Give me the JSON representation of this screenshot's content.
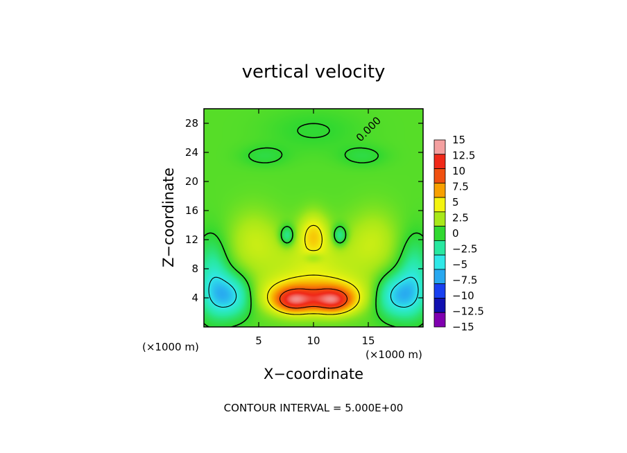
{
  "chart_data": {
    "type": "heatmap",
    "title": "vertical velocity",
    "xlabel": "X−coordinate",
    "ylabel": "Z−coordinate",
    "x_unit_label": "(×1000 m)",
    "z_unit_label": "(×1000 m)",
    "xlim": [
      0,
      20
    ],
    "ylim": [
      0,
      30
    ],
    "x_ticks": [
      {
        "value": 5,
        "label": "5"
      },
      {
        "value": 10,
        "label": "10"
      },
      {
        "value": 15,
        "label": "15"
      }
    ],
    "y_ticks": [
      {
        "value": 4,
        "label": "4"
      },
      {
        "value": 8,
        "label": "8"
      },
      {
        "value": 12,
        "label": "12"
      },
      {
        "value": 16,
        "label": "16"
      },
      {
        "value": 20,
        "label": "20"
      },
      {
        "value": 24,
        "label": "24"
      },
      {
        "value": 28,
        "label": "28"
      }
    ],
    "colorbar": {
      "levels": [
        15,
        12.5,
        10,
        7.5,
        5,
        2.5,
        0,
        -2.5,
        -5,
        -7.5,
        -10,
        -12.5,
        -15
      ],
      "labels": [
        "15",
        "12.5",
        "10",
        "7.5",
        "5",
        "2.5",
        "0",
        "−2.5",
        "−5",
        "−7.5",
        "−10",
        "−12.5",
        "−15"
      ],
      "colors": [
        "#f4a0a0",
        "#f02818",
        "#f05010",
        "#f8a000",
        "#f4f410",
        "#a8e818",
        "#30d830",
        "#28e8a0",
        "#30e8e8",
        "#28a8f0",
        "#1840f0",
        "#1010b0",
        "#8000b0"
      ]
    },
    "contour_interval_text": "CONTOUR INTERVAL = 5.000E+00",
    "contour_label": "0.000",
    "field": {
      "background": 0.8,
      "features": [
        {
          "kind": "updraft-core",
          "x": 8.2,
          "z": 3.6,
          "amplitude": 8.6,
          "sx": 1.3,
          "sz": 1.2
        },
        {
          "kind": "updraft-core",
          "x": 11.8,
          "z": 3.6,
          "amplitude": 8.6,
          "sx": 1.3,
          "sz": 1.2
        },
        {
          "kind": "updraft-band",
          "x": 10.0,
          "z": 4.5,
          "amplitude": 5.5,
          "sx": 3.6,
          "sz": 1.8
        },
        {
          "kind": "updraft-center",
          "x": 10.0,
          "z": 12.8,
          "amplitude": 4.2,
          "sx": 0.9,
          "sz": 2.0
        },
        {
          "kind": "weak-updraft",
          "x": 10.0,
          "z": 9.0,
          "amplitude": 2.6,
          "sx": 3.5,
          "sz": 3.0
        },
        {
          "kind": "weak-updraft",
          "x": 4.5,
          "z": 12.0,
          "amplitude": 2.2,
          "sx": 1.6,
          "sz": 3.0
        },
        {
          "kind": "weak-updraft",
          "x": 15.5,
          "z": 12.0,
          "amplitude": 2.2,
          "sx": 1.6,
          "sz": 3.0
        },
        {
          "kind": "downdraft",
          "x": 2.3,
          "z": 4.3,
          "amplitude": -7.2,
          "sx": 1.4,
          "sz": 2.0
        },
        {
          "kind": "downdraft",
          "x": 17.7,
          "z": 4.3,
          "amplitude": -7.2,
          "sx": 1.4,
          "sz": 2.0
        },
        {
          "kind": "downdraft",
          "x": 0.8,
          "z": 7.0,
          "amplitude": -4.0,
          "sx": 1.0,
          "sz": 3.5
        },
        {
          "kind": "downdraft",
          "x": 19.2,
          "z": 7.0,
          "amplitude": -4.0,
          "sx": 1.0,
          "sz": 3.5
        },
        {
          "kind": "downdraft",
          "x": 7.6,
          "z": 12.5,
          "amplitude": -4.2,
          "sx": 0.5,
          "sz": 1.0
        },
        {
          "kind": "downdraft",
          "x": 12.4,
          "z": 12.5,
          "amplitude": -4.2,
          "sx": 0.5,
          "sz": 1.0
        },
        {
          "kind": "downdraft",
          "x": 10.0,
          "z": 9.5,
          "amplitude": -2.0,
          "sx": 0.6,
          "sz": 0.5
        },
        {
          "kind": "weak-downdraft",
          "x": 5.5,
          "z": 23.5,
          "amplitude": -1.2,
          "sx": 1.5,
          "sz": 1.0
        },
        {
          "kind": "weak-downdraft",
          "x": 14.5,
          "z": 23.5,
          "amplitude": -1.2,
          "sx": 1.5,
          "sz": 1.0
        },
        {
          "kind": "weak-downdraft",
          "x": 10.0,
          "z": 27.0,
          "amplitude": -0.9,
          "sx": 3.0,
          "sz": 2.0
        }
      ]
    },
    "grid": false,
    "legend": "right"
  }
}
